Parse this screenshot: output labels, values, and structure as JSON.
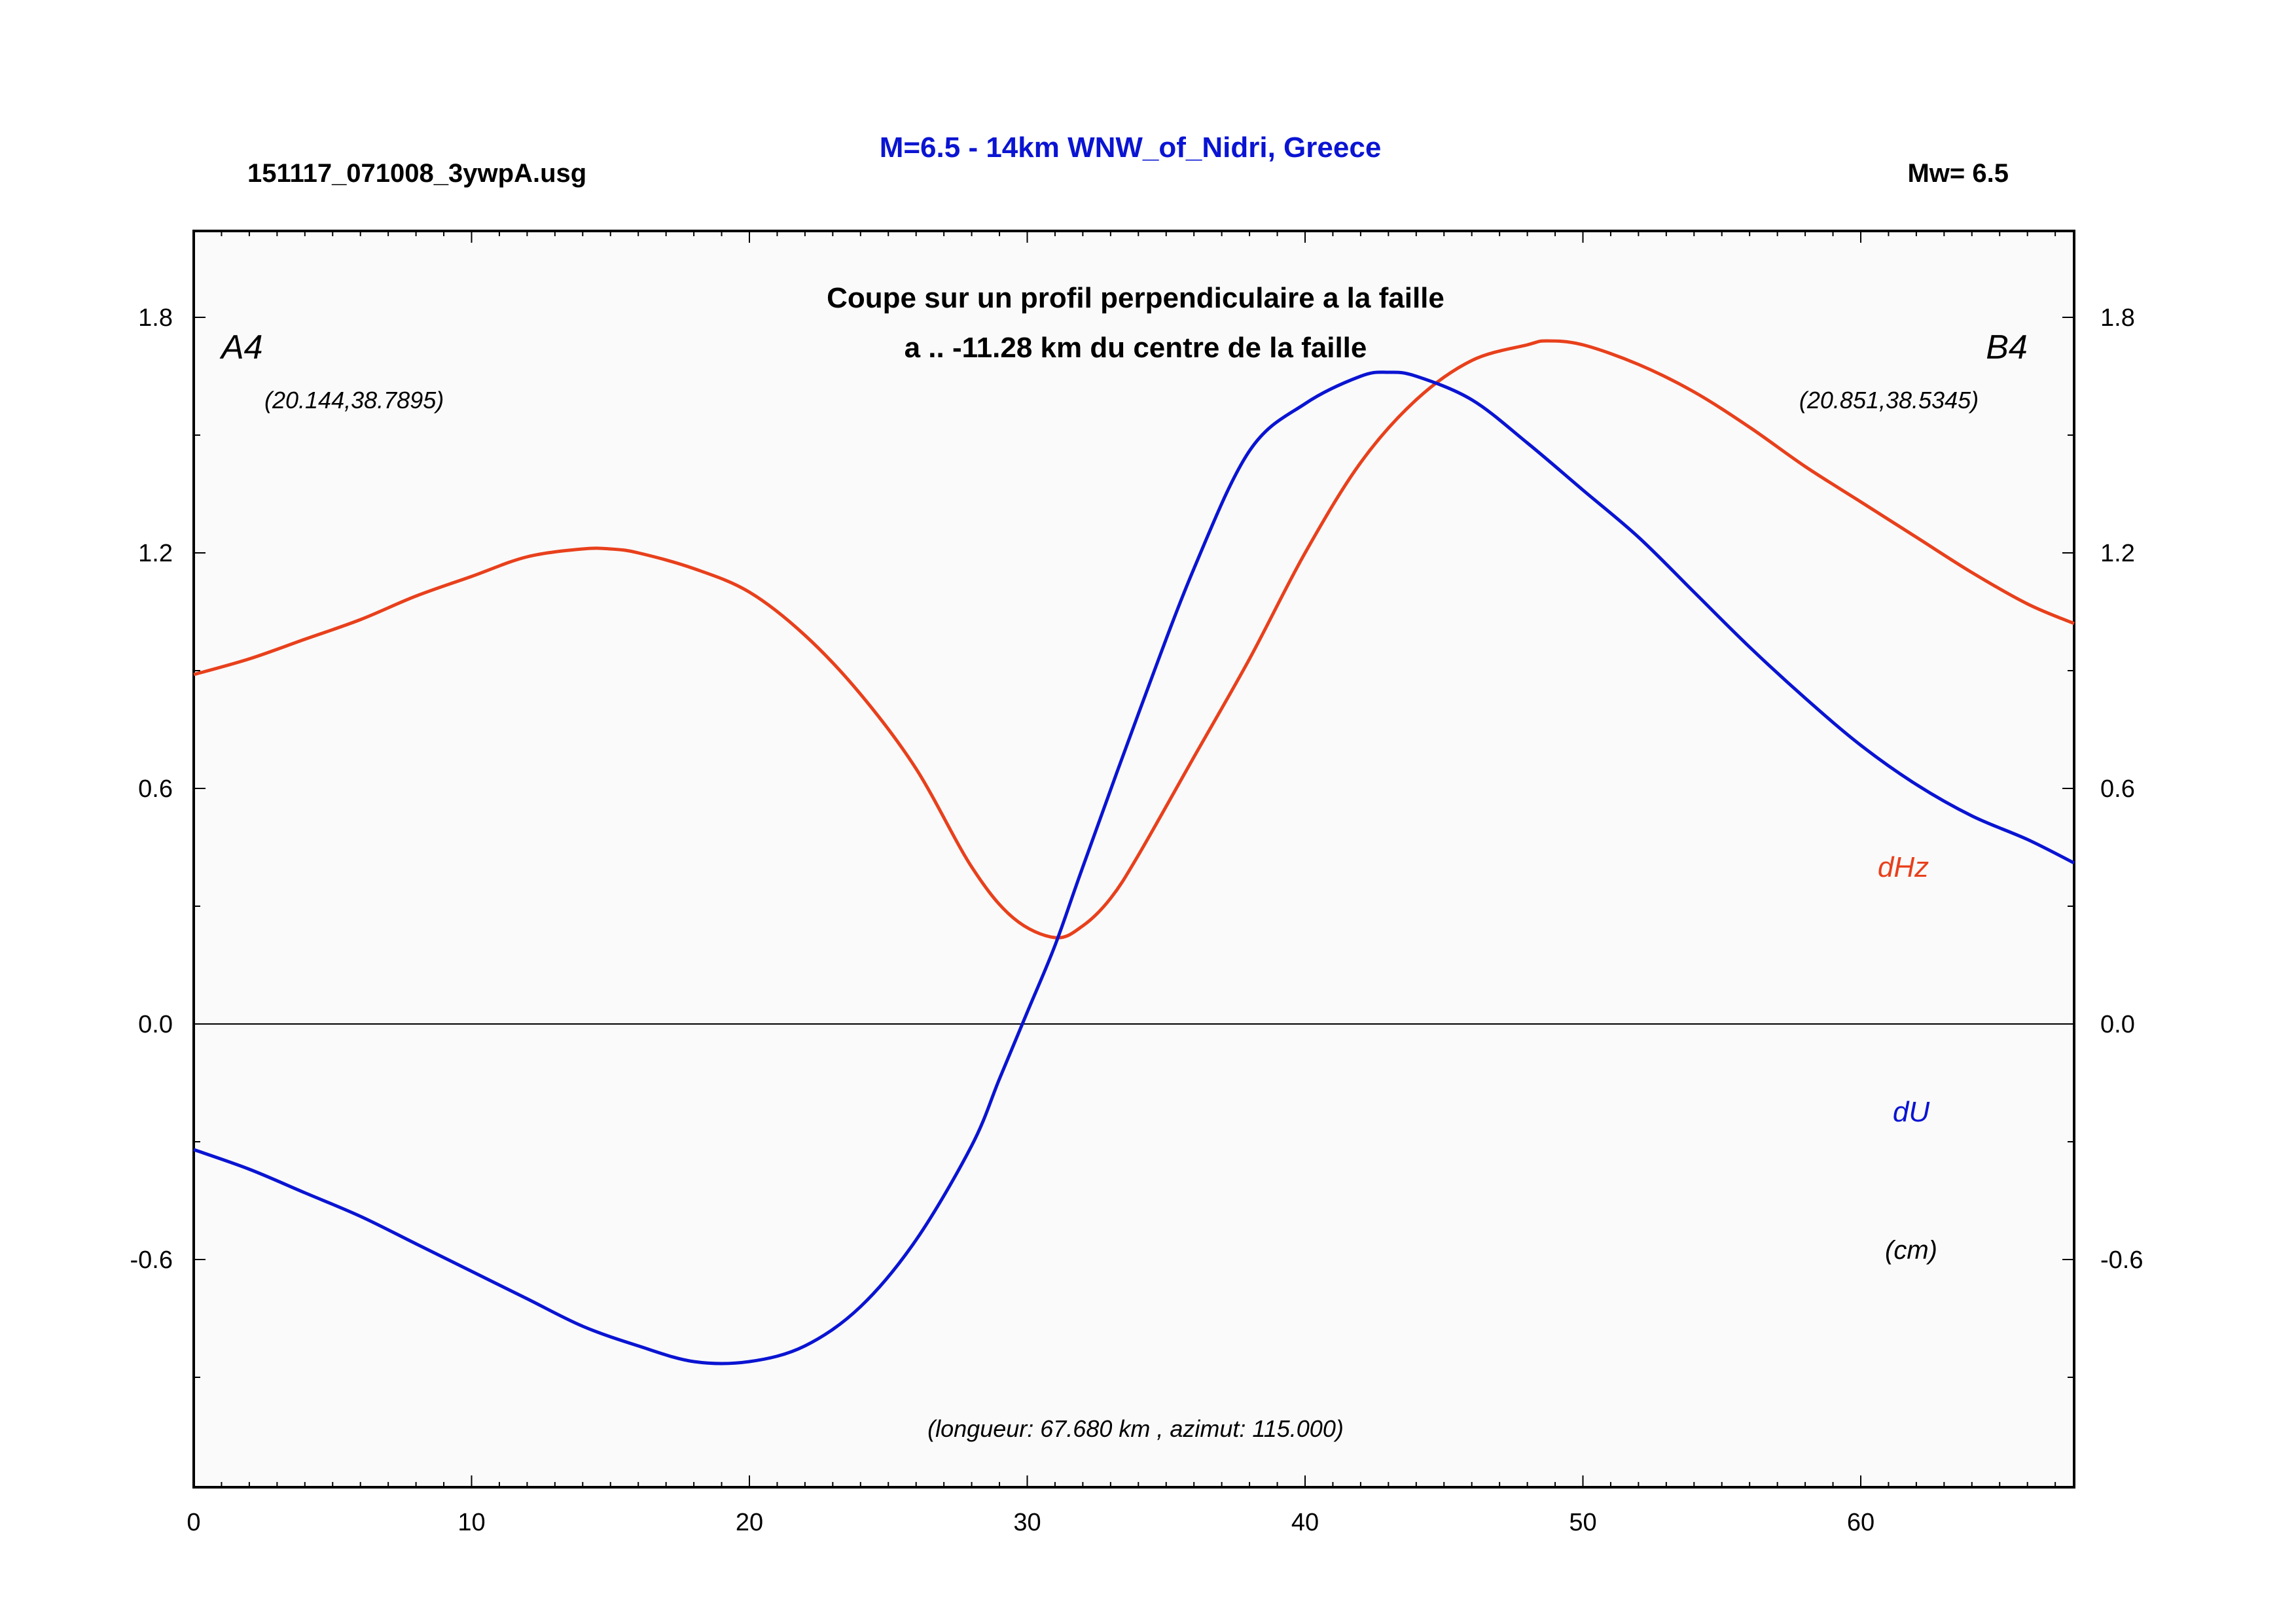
{
  "header": {
    "filename": "151117_071008_3ywpA.usg",
    "title": "M=6.5 - 14km WNW_of_Nidri, Greece",
    "magnitude": "Mw= 6.5"
  },
  "chart_data": {
    "type": "line",
    "subtitle_line1": "Coupe sur un profil perpendiculaire a la faille",
    "subtitle_line2": "a .. -11.28 km du centre de la faille",
    "point_a": {
      "label": "A4",
      "coords": "(20.144,38.7895)"
    },
    "point_b": {
      "label": "B4",
      "coords": "(20.851,38.5345)"
    },
    "footer_note": "(longueur: 67.680 km , azimut: 115.000)",
    "unit_label": "(cm)",
    "xlim": [
      0,
      67.68
    ],
    "ylim": [
      -1.18,
      2.02
    ],
    "x_ticks": [
      0,
      10,
      20,
      30,
      40,
      50,
      60
    ],
    "x_tick_labels": [
      "0",
      "10",
      "20",
      "30",
      "40",
      "50",
      "60"
    ],
    "y_ticks": [
      -0.6,
      0.0,
      0.6,
      1.2,
      1.8
    ],
    "y_tick_labels": [
      "-0.6",
      "0.0",
      "0.6",
      "1.2",
      "1.8"
    ],
    "zero_line": true,
    "grid": false,
    "series": [
      {
        "name": "dHz",
        "color": "#e8401c",
        "points": [
          [
            0,
            0.89
          ],
          [
            2,
            0.93
          ],
          [
            4,
            0.98
          ],
          [
            6,
            1.03
          ],
          [
            8,
            1.09
          ],
          [
            10,
            1.14
          ],
          [
            12,
            1.19
          ],
          [
            14,
            1.21
          ],
          [
            15,
            1.21
          ],
          [
            16,
            1.2
          ],
          [
            18,
            1.16
          ],
          [
            20,
            1.1
          ],
          [
            22,
            0.99
          ],
          [
            24,
            0.84
          ],
          [
            26,
            0.65
          ],
          [
            28,
            0.4
          ],
          [
            29.5,
            0.27
          ],
          [
            31,
            0.22
          ],
          [
            32,
            0.25
          ],
          [
            33,
            0.32
          ],
          [
            34,
            0.43
          ],
          [
            36,
            0.68
          ],
          [
            38,
            0.93
          ],
          [
            40,
            1.2
          ],
          [
            42,
            1.43
          ],
          [
            44,
            1.59
          ],
          [
            46,
            1.69
          ],
          [
            48,
            1.73
          ],
          [
            48.7,
            1.74
          ],
          [
            50,
            1.73
          ],
          [
            52,
            1.68
          ],
          [
            54,
            1.61
          ],
          [
            56,
            1.52
          ],
          [
            58,
            1.42
          ],
          [
            60,
            1.33
          ],
          [
            62,
            1.24
          ],
          [
            64,
            1.15
          ],
          [
            66,
            1.07
          ],
          [
            67.68,
            1.02
          ]
        ]
      },
      {
        "name": "dU",
        "color": "#0a14d2",
        "points": [
          [
            0,
            -0.32
          ],
          [
            2,
            -0.37
          ],
          [
            4,
            -0.43
          ],
          [
            6,
            -0.49
          ],
          [
            8,
            -0.56
          ],
          [
            10,
            -0.63
          ],
          [
            12,
            -0.7
          ],
          [
            14,
            -0.77
          ],
          [
            16,
            -0.82
          ],
          [
            18,
            -0.86
          ],
          [
            20,
            -0.86
          ],
          [
            22,
            -0.82
          ],
          [
            24,
            -0.72
          ],
          [
            26,
            -0.55
          ],
          [
            28,
            -0.31
          ],
          [
            29,
            -0.14
          ],
          [
            30,
            0.03
          ],
          [
            31,
            0.2
          ],
          [
            32,
            0.4
          ],
          [
            34,
            0.79
          ],
          [
            36,
            1.16
          ],
          [
            38,
            1.46
          ],
          [
            40,
            1.58
          ],
          [
            42,
            1.65
          ],
          [
            43,
            1.66
          ],
          [
            44,
            1.65
          ],
          [
            46,
            1.59
          ],
          [
            48,
            1.48
          ],
          [
            50,
            1.36
          ],
          [
            52,
            1.24
          ],
          [
            54,
            1.1
          ],
          [
            56,
            0.96
          ],
          [
            58,
            0.83
          ],
          [
            60,
            0.71
          ],
          [
            62,
            0.61
          ],
          [
            64,
            0.53
          ],
          [
            66,
            0.47
          ],
          [
            67.68,
            0.41
          ]
        ]
      }
    ]
  }
}
